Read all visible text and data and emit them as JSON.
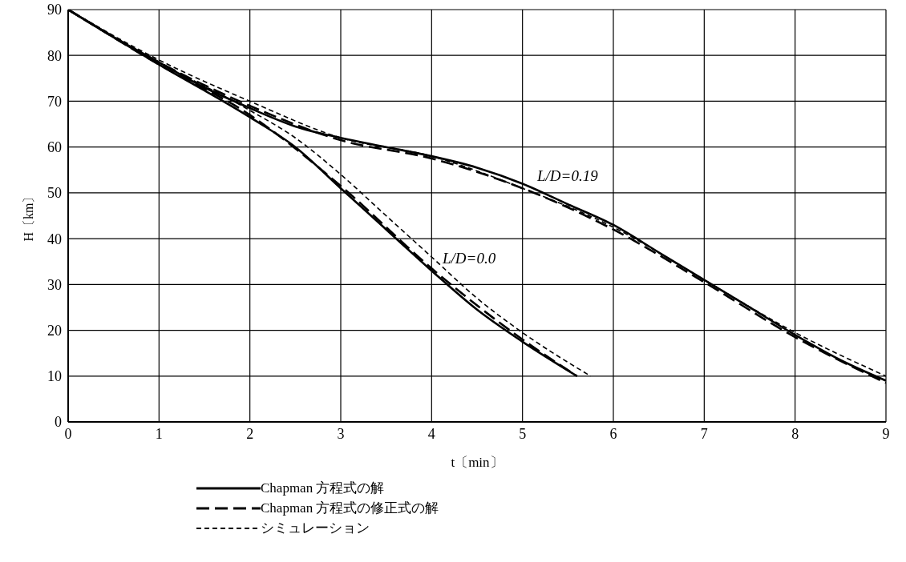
{
  "chart_data": {
    "type": "line",
    "xlabel": "t〔min〕",
    "ylabel": "H〔km〕",
    "xlim": [
      0,
      9
    ],
    "xticks": [
      0,
      1,
      2,
      3,
      4,
      5,
      6,
      7,
      8,
      9
    ],
    "ylim": [
      0,
      90
    ],
    "yticks": [
      0,
      10,
      20,
      30,
      40,
      50,
      60,
      70,
      80,
      90
    ],
    "grid": true,
    "legend": "bottom",
    "marker": "none",
    "series": [
      {
        "name": "Chapman 方程式の解",
        "color": "#000000",
        "line_style": "solid",
        "x": [
          0,
          0.5,
          1,
          1.5,
          2,
          2.5,
          3,
          3.5,
          4,
          4.5,
          5,
          5.5,
          6,
          6.5,
          7,
          7.5,
          8,
          8.5,
          9
        ],
        "values": [
          90,
          84,
          78.5,
          73,
          68.5,
          64.5,
          62,
          60,
          58,
          55.5,
          52,
          47.5,
          43,
          37,
          31,
          25,
          19,
          13.5,
          9
        ]
      },
      {
        "name": "Chapman 方程式の修正式の解",
        "color": "#000000",
        "line_style": "dashed",
        "x": [
          0,
          1,
          2,
          3,
          4,
          5,
          6,
          7,
          8,
          9
        ],
        "values": [
          90,
          78.5,
          69,
          61.5,
          57.5,
          51,
          42,
          30.5,
          18.5,
          8.5
        ]
      },
      {
        "name": "シミュレーション",
        "color": "#000000",
        "line_style": "dotted",
        "x": [
          0,
          1,
          2,
          3,
          4,
          5,
          6,
          7,
          8,
          9
        ],
        "values": [
          90,
          79,
          70,
          62,
          58,
          51,
          42.5,
          31,
          19.5,
          10
        ]
      },
      {
        "color": "#000000",
        "line_style": "solid",
        "x": [
          0,
          1,
          2,
          2.5,
          3,
          3.5,
          4,
          4.5,
          5,
          5.6
        ],
        "values": [
          90,
          78,
          66.5,
          60,
          51,
          42,
          33,
          24.5,
          17.5,
          10
        ]
      },
      {
        "color": "#000000",
        "line_style": "dashed",
        "x": [
          0,
          1,
          2,
          3,
          4,
          5,
          5.6
        ],
        "values": [
          90,
          78,
          67,
          51.5,
          33.5,
          18,
          10
        ]
      },
      {
        "color": "#000000",
        "line_style": "dotted",
        "x": [
          0,
          1,
          2,
          2.5,
          3,
          3.5,
          4,
          4.5,
          5,
          5.75
        ],
        "values": [
          90,
          78.5,
          68,
          62,
          54,
          45,
          36,
          27,
          19.5,
          10
        ]
      }
    ],
    "annotations": [
      "L/D=0.19",
      "L/D=0.0"
    ]
  }
}
